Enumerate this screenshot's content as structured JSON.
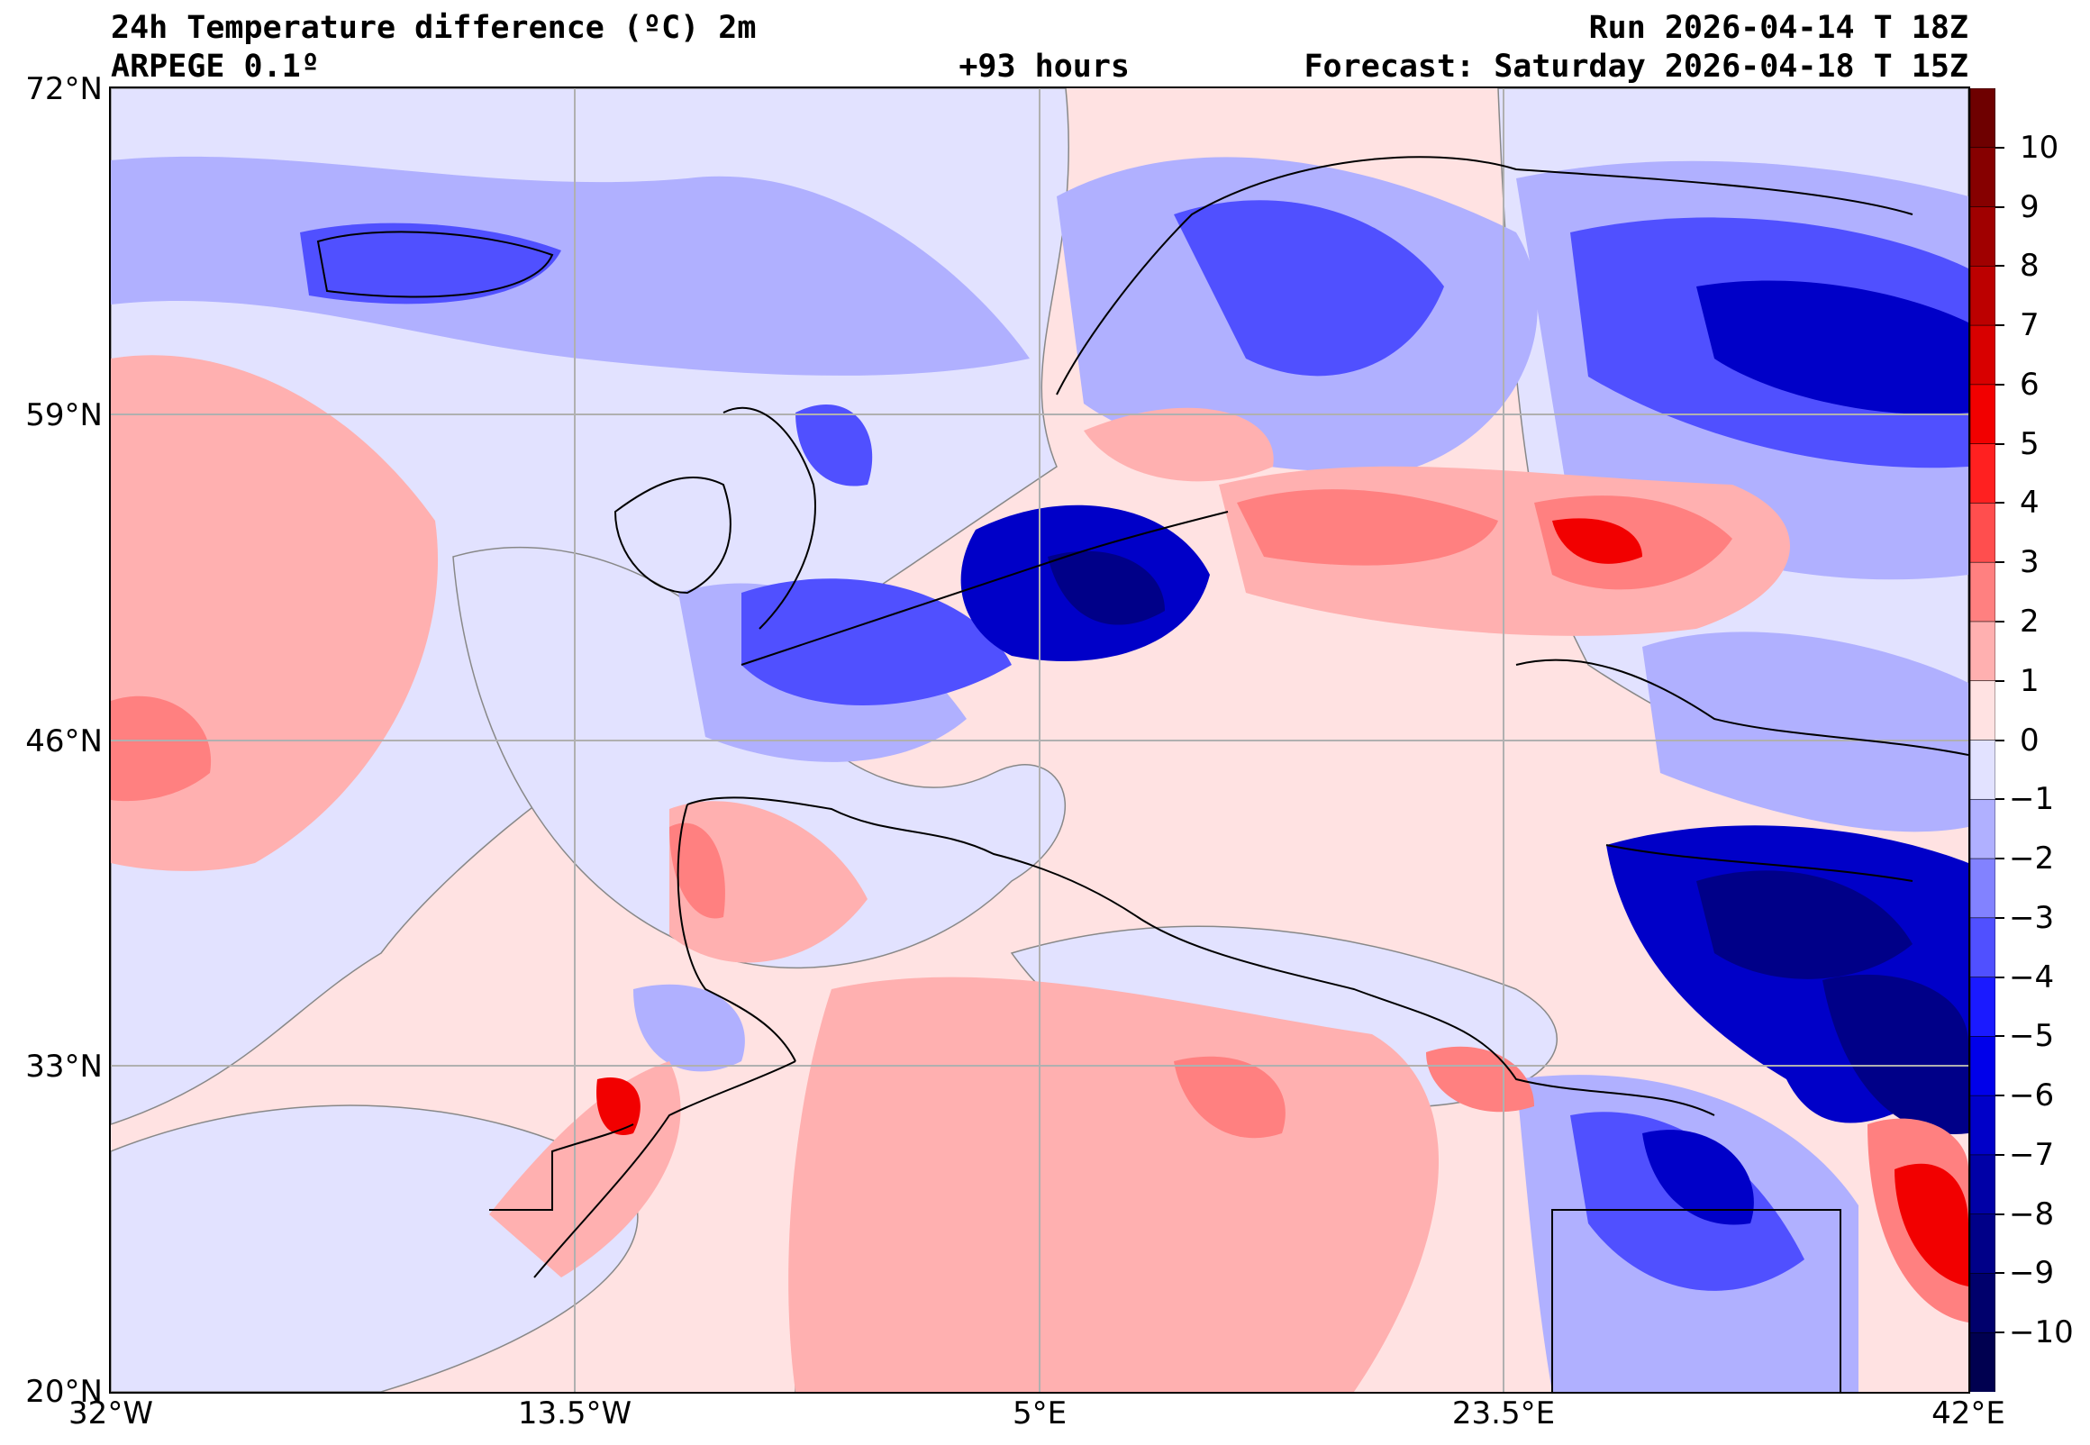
{
  "header": {
    "title": "24h Temperature difference (ºC) 2m",
    "model": "ARPEGE 0.1º",
    "lead_time": "+93 hours",
    "run": "Run 2026-04-14 T 18Z",
    "forecast": "Forecast: Saturday 2026-04-18 T 15Z"
  },
  "axes": {
    "lat_labels": [
      "72°N",
      "59°N",
      "46°N",
      "33°N",
      "20°N"
    ],
    "lon_labels": [
      "32°W",
      "13.5°W",
      "5°E",
      "23.5°E",
      "42°E"
    ]
  },
  "colorbar": {
    "range": [
      -11,
      11
    ],
    "tick_labels": [
      "10",
      "9",
      "8",
      "7",
      "6",
      "5",
      "4",
      "3",
      "2",
      "1",
      "0",
      "−1",
      "−2",
      "−3",
      "−4",
      "−5",
      "−6",
      "−7",
      "−8",
      "−9",
      "−10"
    ],
    "colors": [
      "#6e0000",
      "#860000",
      "#a00000",
      "#bc0000",
      "#d80000",
      "#f20000",
      "#ff2020",
      "#ff4e4e",
      "#ff8080",
      "#ffb0b0",
      "#ffe2e2",
      "#e2e2ff",
      "#b0b0ff",
      "#8282ff",
      "#5050ff",
      "#1a1aff",
      "#0000ea",
      "#0000c8",
      "#0000a6",
      "#000088",
      "#00006c",
      "#000050"
    ]
  }
}
